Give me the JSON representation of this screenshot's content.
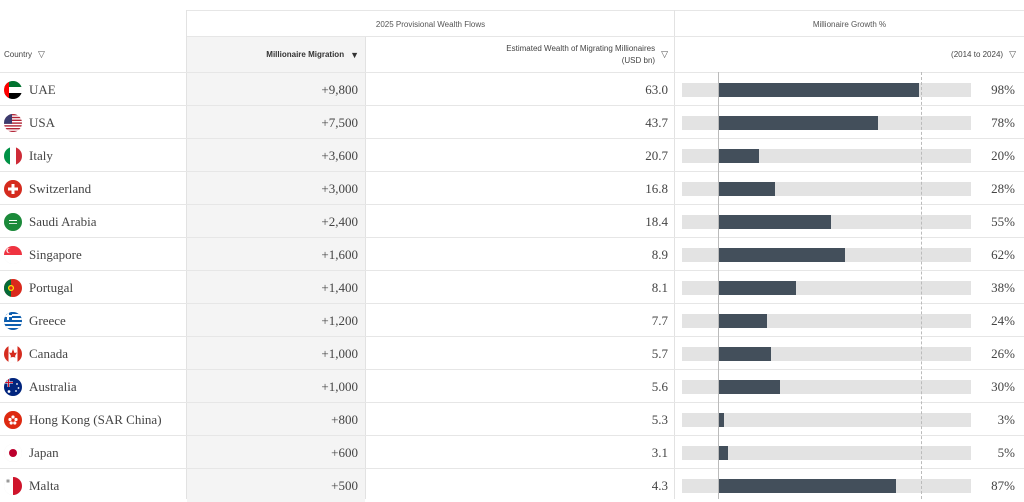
{
  "headers": {
    "group_flows": "2025 Provisional Wealth Flows",
    "group_growth": "Millionaire Growth %",
    "country": "Country",
    "migration": "Millionaire Migration",
    "wealth_line1": "Estimated Wealth of Migrating Millionaires",
    "wealth_line2": "(USD bn)",
    "growth_period": "(2014 to 2024)"
  },
  "icons": {
    "filter": "filter-triangle-icon",
    "sort": "sort-desc-icon"
  },
  "colors": {
    "bar_fill": "#434f5b",
    "bar_track": "#e3e3e3"
  },
  "rows": [
    {
      "country": "UAE",
      "flag": "uae-flag-icon",
      "migration": "+9,800",
      "wealth": "63.0",
      "growth": "98%",
      "growth_value": 98
    },
    {
      "country": "USA",
      "flag": "usa-flag-icon",
      "migration": "+7,500",
      "wealth": "43.7",
      "growth": "78%",
      "growth_value": 78
    },
    {
      "country": "Italy",
      "flag": "italy-flag-icon",
      "migration": "+3,600",
      "wealth": "20.7",
      "growth": "20%",
      "growth_value": 20
    },
    {
      "country": "Switzerland",
      "flag": "switzerland-flag-icon",
      "migration": "+3,000",
      "wealth": "16.8",
      "growth": "28%",
      "growth_value": 28
    },
    {
      "country": "Saudi Arabia",
      "flag": "saudi-arabia-flag-icon",
      "migration": "+2,400",
      "wealth": "18.4",
      "growth": "55%",
      "growth_value": 55
    },
    {
      "country": "Singapore",
      "flag": "singapore-flag-icon",
      "migration": "+1,600",
      "wealth": "8.9",
      "growth": "62%",
      "growth_value": 62
    },
    {
      "country": "Portugal",
      "flag": "portugal-flag-icon",
      "migration": "+1,400",
      "wealth": "8.1",
      "growth": "38%",
      "growth_value": 38
    },
    {
      "country": "Greece",
      "flag": "greece-flag-icon",
      "migration": "+1,200",
      "wealth": "7.7",
      "growth": "24%",
      "growth_value": 24
    },
    {
      "country": "Canada",
      "flag": "canada-flag-icon",
      "migration": "+1,000",
      "wealth": "5.7",
      "growth": "26%",
      "growth_value": 26
    },
    {
      "country": "Australia",
      "flag": "australia-flag-icon",
      "migration": "+1,000",
      "wealth": "5.6",
      "growth": "30%",
      "growth_value": 30
    },
    {
      "country": "Hong Kong (SAR China)",
      "flag": "hong-kong-flag-icon",
      "migration": "+800",
      "wealth": "5.3",
      "growth": "3%",
      "growth_value": 3
    },
    {
      "country": "Japan",
      "flag": "japan-flag-icon",
      "migration": "+600",
      "wealth": "3.1",
      "growth": "5%",
      "growth_value": 5
    },
    {
      "country": "Malta",
      "flag": "malta-flag-icon",
      "migration": "+500",
      "wealth": "4.3",
      "growth": "87%",
      "growth_value": 87
    }
  ]
}
